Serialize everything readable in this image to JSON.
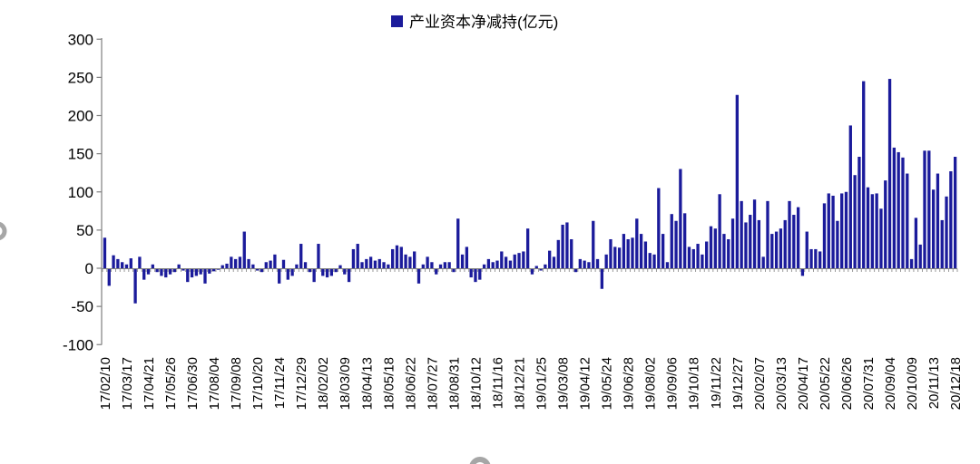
{
  "legend": {
    "label": "产业资本净减持(亿元)",
    "marker_color": "#1b1b9b"
  },
  "chart_data": {
    "type": "bar",
    "title": "",
    "series_name": "产业资本净减持(亿元)",
    "ylabel": "",
    "xlabel": "",
    "ylim": [
      -100,
      300
    ],
    "y_ticks": [
      300,
      250,
      200,
      150,
      100,
      50,
      0,
      -50,
      -100
    ],
    "grid": false,
    "legend_position": "top-center",
    "bar_color": "#1b1b9b",
    "axis_color": "#808080",
    "tick_color": "#808080",
    "text_color": "#000000",
    "label_every": 5,
    "x_tick_labels": [
      "17/02/10",
      "17/03/17",
      "17/04/21",
      "17/05/26",
      "17/06/30",
      "17/08/04",
      "17/09/08",
      "17/10/20",
      "17/11/24",
      "17/12/29",
      "18/02/02",
      "18/03/09",
      "18/04/13",
      "18/05/18",
      "18/06/22",
      "18/07/27",
      "18/08/31",
      "18/10/12",
      "18/11/16",
      "18/12/21",
      "19/01/25",
      "19/03/08",
      "19/04/12",
      "19/05/24",
      "19/06/28",
      "19/08/02",
      "19/09/06",
      "19/10/18",
      "19/11/22",
      "19/12/27",
      "20/02/07",
      "20/03/13",
      "20/04/17",
      "20/05/22",
      "20/06/26",
      "20/07/31",
      "20/09/04",
      "20/10/09",
      "20/11/13",
      "20/12/18"
    ],
    "values": [
      40,
      -23,
      17,
      12,
      8,
      5,
      13,
      -46,
      15,
      -15,
      -8,
      5,
      -5,
      -10,
      -12,
      -8,
      -5,
      5,
      -3,
      -18,
      -12,
      -10,
      -8,
      -20,
      -7,
      -4,
      -2,
      4,
      6,
      15,
      12,
      15,
      48,
      12,
      5,
      -3,
      -5,
      8,
      10,
      18,
      -20,
      11,
      -15,
      -10,
      5,
      32,
      8,
      -5,
      -18,
      32,
      -10,
      -12,
      -10,
      -5,
      4,
      -8,
      -18,
      25,
      32,
      8,
      12,
      15,
      10,
      12,
      8,
      5,
      25,
      30,
      28,
      18,
      15,
      22,
      -20,
      5,
      15,
      8,
      -8,
      5,
      8,
      8,
      -5,
      65,
      18,
      28,
      -12,
      -18,
      -15,
      5,
      12,
      8,
      10,
      22,
      15,
      10,
      18,
      20,
      22,
      52,
      -8,
      3,
      -3,
      5,
      23,
      15,
      37,
      57,
      60,
      38,
      -5,
      12,
      10,
      8,
      62,
      12,
      -27,
      18,
      38,
      28,
      27,
      45,
      38,
      40,
      65,
      45,
      35,
      20,
      18,
      105,
      45,
      8,
      71,
      62,
      130,
      72,
      28,
      25,
      32,
      18,
      35,
      55,
      52,
      97,
      45,
      38,
      65,
      227,
      88,
      60,
      70,
      90,
      63,
      15,
      88,
      45,
      48,
      52,
      63,
      88,
      70,
      80,
      -10,
      48,
      25,
      25,
      22,
      85,
      98,
      95,
      62,
      98,
      100,
      187,
      122,
      146,
      245,
      106,
      97,
      98,
      78,
      115,
      248,
      158,
      152,
      145,
      124,
      12,
      66,
      31,
      154,
      154,
      103,
      124,
      63,
      94,
      127,
      146
    ]
  }
}
